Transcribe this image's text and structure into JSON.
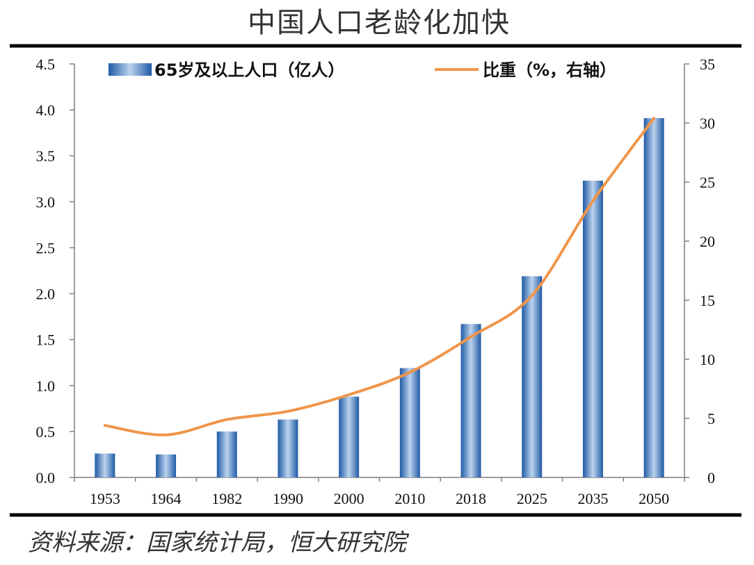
{
  "chart_data": {
    "type": "bar",
    "title": "中国人口老龄化加快",
    "categories": [
      "1953",
      "1964",
      "1982",
      "1990",
      "2000",
      "2010",
      "2018",
      "2025",
      "2035",
      "2050"
    ],
    "series": [
      {
        "name": "65岁及以上人口（亿人）",
        "type": "bar",
        "axis": "left",
        "values": [
          0.26,
          0.25,
          0.5,
          0.63,
          0.88,
          1.19,
          1.67,
          2.19,
          3.23,
          3.91
        ]
      },
      {
        "name": "比重（%，右轴）",
        "type": "line",
        "axis": "right",
        "values": [
          4.4,
          3.6,
          4.9,
          5.6,
          7.0,
          8.9,
          11.9,
          15.4,
          23.4,
          30.4
        ]
      }
    ],
    "y_left": {
      "range": [
        0,
        4.5
      ],
      "ticks": [
        "0.0",
        "0.5",
        "1.0",
        "1.5",
        "2.0",
        "2.5",
        "3.0",
        "3.5",
        "4.0",
        "4.5"
      ]
    },
    "y_right": {
      "range": [
        0,
        35
      ],
      "ticks": [
        "0",
        "5",
        "10",
        "15",
        "20",
        "25",
        "30",
        "35"
      ]
    },
    "grid": false,
    "legend": "top",
    "colors": {
      "bar": "#3b78c2",
      "bar_dark": "#1f5aa6",
      "bar_light": "#bcd3ee",
      "line": "#f0954a"
    }
  },
  "source": "资料来源：国家统计局，恒大研究院"
}
